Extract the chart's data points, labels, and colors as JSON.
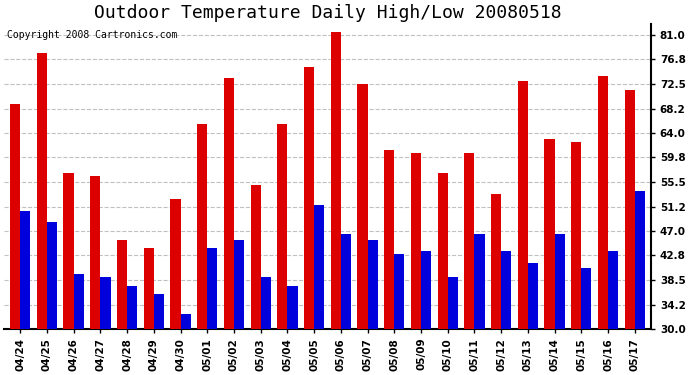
{
  "title": "Outdoor Temperature Daily High/Low 20080518",
  "copyright": "Copyright 2008 Cartronics.com",
  "dates": [
    "04/24",
    "04/25",
    "04/26",
    "04/27",
    "04/28",
    "04/29",
    "04/30",
    "05/01",
    "05/02",
    "05/03",
    "05/04",
    "05/05",
    "05/06",
    "05/07",
    "05/08",
    "05/09",
    "05/10",
    "05/11",
    "05/12",
    "05/13",
    "05/14",
    "05/15",
    "05/16",
    "05/17"
  ],
  "highs": [
    69.0,
    78.0,
    57.0,
    56.5,
    45.5,
    44.0,
    52.5,
    65.5,
    73.5,
    55.0,
    65.5,
    75.5,
    81.5,
    72.5,
    61.0,
    60.5,
    57.0,
    60.5,
    53.5,
    73.0,
    63.0,
    62.5,
    74.0,
    71.5
  ],
  "lows": [
    50.5,
    48.5,
    39.5,
    39.0,
    37.5,
    36.0,
    32.5,
    44.0,
    45.5,
    39.0,
    37.5,
    51.5,
    46.5,
    45.5,
    43.0,
    43.5,
    39.0,
    46.5,
    43.5,
    41.5,
    46.5,
    40.5,
    43.5,
    54.0
  ],
  "bar_color_high": "#dd0000",
  "bar_color_low": "#0000dd",
  "bg_color": "#ffffff",
  "plot_bg_color": "#ffffff",
  "grid_color": "#c0c0c0",
  "yticks": [
    30.0,
    34.2,
    38.5,
    42.8,
    47.0,
    51.2,
    55.5,
    59.8,
    64.0,
    68.2,
    72.5,
    76.8,
    81.0
  ],
  "ylim": [
    30.0,
    83.0
  ],
  "title_fontsize": 13,
  "tick_fontsize": 7.5,
  "copyright_fontsize": 7
}
